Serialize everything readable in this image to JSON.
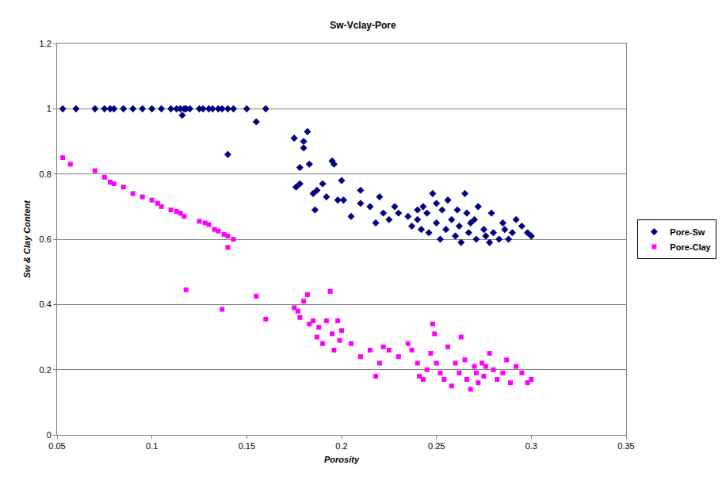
{
  "chart_data": {
    "type": "scatter",
    "title": "Sw-Vclay-Pore",
    "x_label": "Porosity",
    "y_label": "Sw & Clay Content",
    "xlim": [
      0.05,
      0.35
    ],
    "xticks": [
      0.05,
      0.1,
      0.15,
      0.2,
      0.25,
      0.3,
      0.35
    ],
    "ylim": [
      0,
      1.2
    ],
    "yticks": [
      0,
      0.2,
      0.4,
      0.6,
      0.8,
      1,
      1.2
    ],
    "grid": true,
    "legend": "right",
    "series": [
      {
        "name": "Pore-Sw",
        "color": "#000080",
        "marker": "diamond",
        "x": [
          0.053,
          0.06,
          0.07,
          0.075,
          0.078,
          0.08,
          0.085,
          0.09,
          0.095,
          0.1,
          0.105,
          0.11,
          0.113,
          0.115,
          0.117,
          0.118,
          0.12,
          0.125,
          0.127,
          0.13,
          0.132,
          0.135,
          0.137,
          0.14,
          0.143,
          0.15,
          0.16,
          0.116,
          0.14,
          0.155,
          0.175,
          0.18,
          0.178,
          0.176,
          0.178,
          0.182,
          0.18,
          0.183,
          0.185,
          0.186,
          0.187,
          0.19,
          0.192,
          0.195,
          0.196,
          0.198,
          0.2,
          0.201,
          0.205,
          0.21,
          0.21,
          0.215,
          0.218,
          0.22,
          0.222,
          0.225,
          0.228,
          0.23,
          0.235,
          0.237,
          0.24,
          0.24,
          0.242,
          0.243,
          0.245,
          0.246,
          0.248,
          0.25,
          0.25,
          0.252,
          0.253,
          0.255,
          0.256,
          0.258,
          0.26,
          0.261,
          0.262,
          0.263,
          0.265,
          0.266,
          0.267,
          0.268,
          0.27,
          0.271,
          0.272,
          0.275,
          0.276,
          0.278,
          0.279,
          0.28,
          0.283,
          0.285,
          0.286,
          0.288,
          0.29,
          0.292,
          0.295,
          0.298,
          0.3
        ],
        "values": [
          1,
          1,
          1,
          1,
          1,
          1,
          1,
          1,
          1,
          1,
          1,
          1,
          1,
          1,
          1,
          1,
          1,
          1,
          1,
          1,
          1,
          1,
          1,
          1,
          1,
          1,
          1,
          0.98,
          0.86,
          0.96,
          0.91,
          0.88,
          0.82,
          0.76,
          0.77,
          0.93,
          0.9,
          0.83,
          0.74,
          0.69,
          0.75,
          0.77,
          0.73,
          0.84,
          0.83,
          0.72,
          0.78,
          0.72,
          0.67,
          0.75,
          0.71,
          0.7,
          0.65,
          0.73,
          0.68,
          0.66,
          0.7,
          0.68,
          0.67,
          0.64,
          0.69,
          0.66,
          0.63,
          0.7,
          0.68,
          0.62,
          0.74,
          0.71,
          0.65,
          0.6,
          0.69,
          0.63,
          0.72,
          0.66,
          0.61,
          0.69,
          0.64,
          0.59,
          0.74,
          0.68,
          0.62,
          0.65,
          0.66,
          0.6,
          0.7,
          0.63,
          0.61,
          0.59,
          0.68,
          0.62,
          0.6,
          0.65,
          0.63,
          0.6,
          0.62,
          0.66,
          0.64,
          0.62,
          0.61
        ]
      },
      {
        "name": "Pore-Clay",
        "color": "#ff00ff",
        "marker": "square",
        "x": [
          0.053,
          0.057,
          0.07,
          0.075,
          0.078,
          0.08,
          0.085,
          0.09,
          0.095,
          0.1,
          0.103,
          0.105,
          0.11,
          0.113,
          0.115,
          0.117,
          0.125,
          0.128,
          0.13,
          0.133,
          0.135,
          0.138,
          0.14,
          0.143,
          0.14,
          0.118,
          0.137,
          0.155,
          0.16,
          0.175,
          0.177,
          0.18,
          0.182,
          0.178,
          0.183,
          0.185,
          0.187,
          0.188,
          0.19,
          0.192,
          0.194,
          0.195,
          0.196,
          0.198,
          0.199,
          0.2,
          0.205,
          0.21,
          0.215,
          0.218,
          0.22,
          0.222,
          0.225,
          0.23,
          0.235,
          0.237,
          0.24,
          0.241,
          0.243,
          0.245,
          0.247,
          0.248,
          0.249,
          0.25,
          0.252,
          0.254,
          0.256,
          0.258,
          0.26,
          0.262,
          0.263,
          0.265,
          0.266,
          0.268,
          0.27,
          0.271,
          0.272,
          0.274,
          0.275,
          0.276,
          0.278,
          0.28,
          0.282,
          0.285,
          0.287,
          0.289,
          0.292,
          0.295,
          0.298,
          0.3
        ],
        "values": [
          0.85,
          0.83,
          0.81,
          0.79,
          0.775,
          0.77,
          0.76,
          0.74,
          0.73,
          0.72,
          0.71,
          0.7,
          0.69,
          0.685,
          0.68,
          0.67,
          0.655,
          0.65,
          0.645,
          0.63,
          0.625,
          0.615,
          0.61,
          0.6,
          0.575,
          0.445,
          0.385,
          0.425,
          0.355,
          0.39,
          0.38,
          0.41,
          0.43,
          0.36,
          0.34,
          0.35,
          0.3,
          0.33,
          0.28,
          0.35,
          0.44,
          0.31,
          0.26,
          0.35,
          0.29,
          0.32,
          0.28,
          0.24,
          0.26,
          0.18,
          0.22,
          0.27,
          0.26,
          0.24,
          0.28,
          0.26,
          0.22,
          0.18,
          0.17,
          0.2,
          0.25,
          0.34,
          0.31,
          0.22,
          0.19,
          0.17,
          0.27,
          0.15,
          0.22,
          0.19,
          0.3,
          0.23,
          0.17,
          0.14,
          0.21,
          0.19,
          0.16,
          0.22,
          0.18,
          0.21,
          0.25,
          0.2,
          0.17,
          0.19,
          0.23,
          0.16,
          0.21,
          0.19,
          0.16,
          0.17
        ]
      }
    ]
  }
}
